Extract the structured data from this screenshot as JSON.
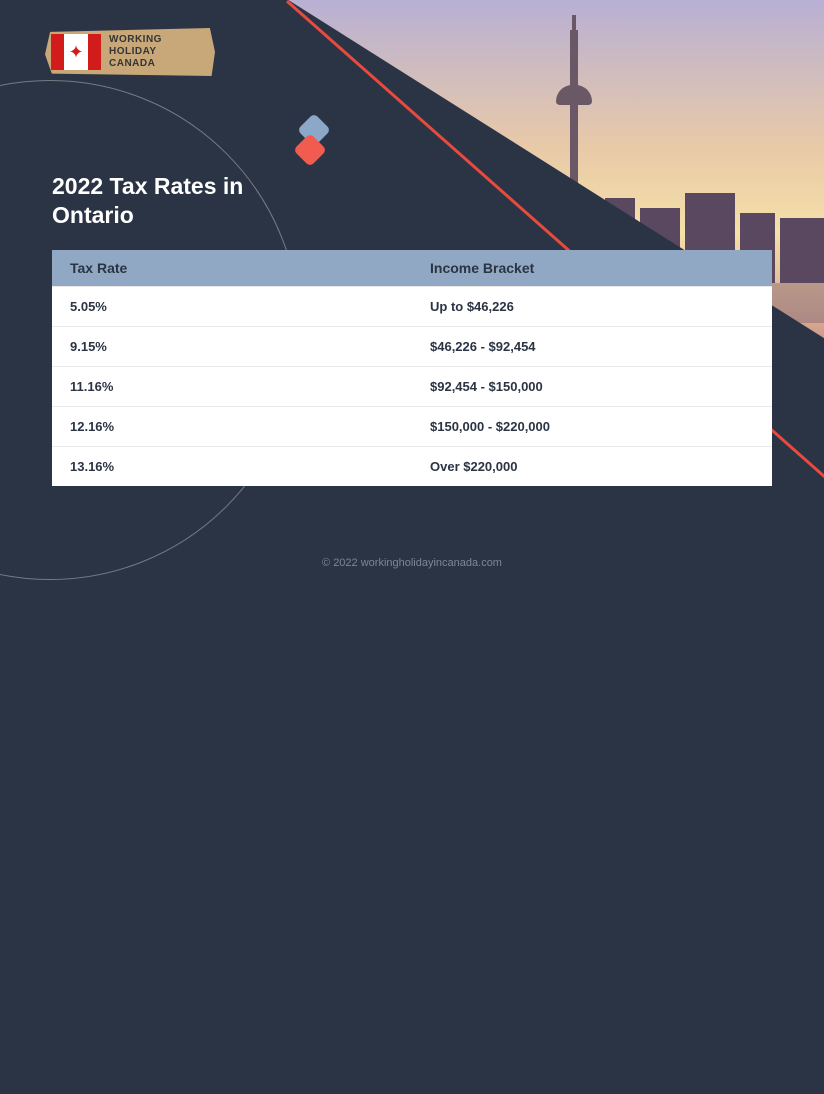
{
  "logo": {
    "line1": "WORKING",
    "line2": "HOLIDAY",
    "line3": "CANADA"
  },
  "title": "2022 Tax Rates in Ontario",
  "accent_colors": {
    "blue_diamond": "#8ca8c8",
    "red_diamond": "#f25c50",
    "diagonal_line": "#e84a3e",
    "table_header_bg": "#90a8c4",
    "page_bg": "#2b3444"
  },
  "table": {
    "columns": [
      "Tax Rate",
      "Income Bracket"
    ],
    "rows": [
      [
        "5.05%",
        "Up to $46,226"
      ],
      [
        "9.15%",
        "$46,226 - $92,454"
      ],
      [
        "11.16%",
        "$92,454 - $150,000"
      ],
      [
        "12.16%",
        "$150,000 - $220,000"
      ],
      [
        "13.16%",
        "Over $220,000"
      ]
    ]
  },
  "footer": "© 2022 workingholidayincanada.com"
}
